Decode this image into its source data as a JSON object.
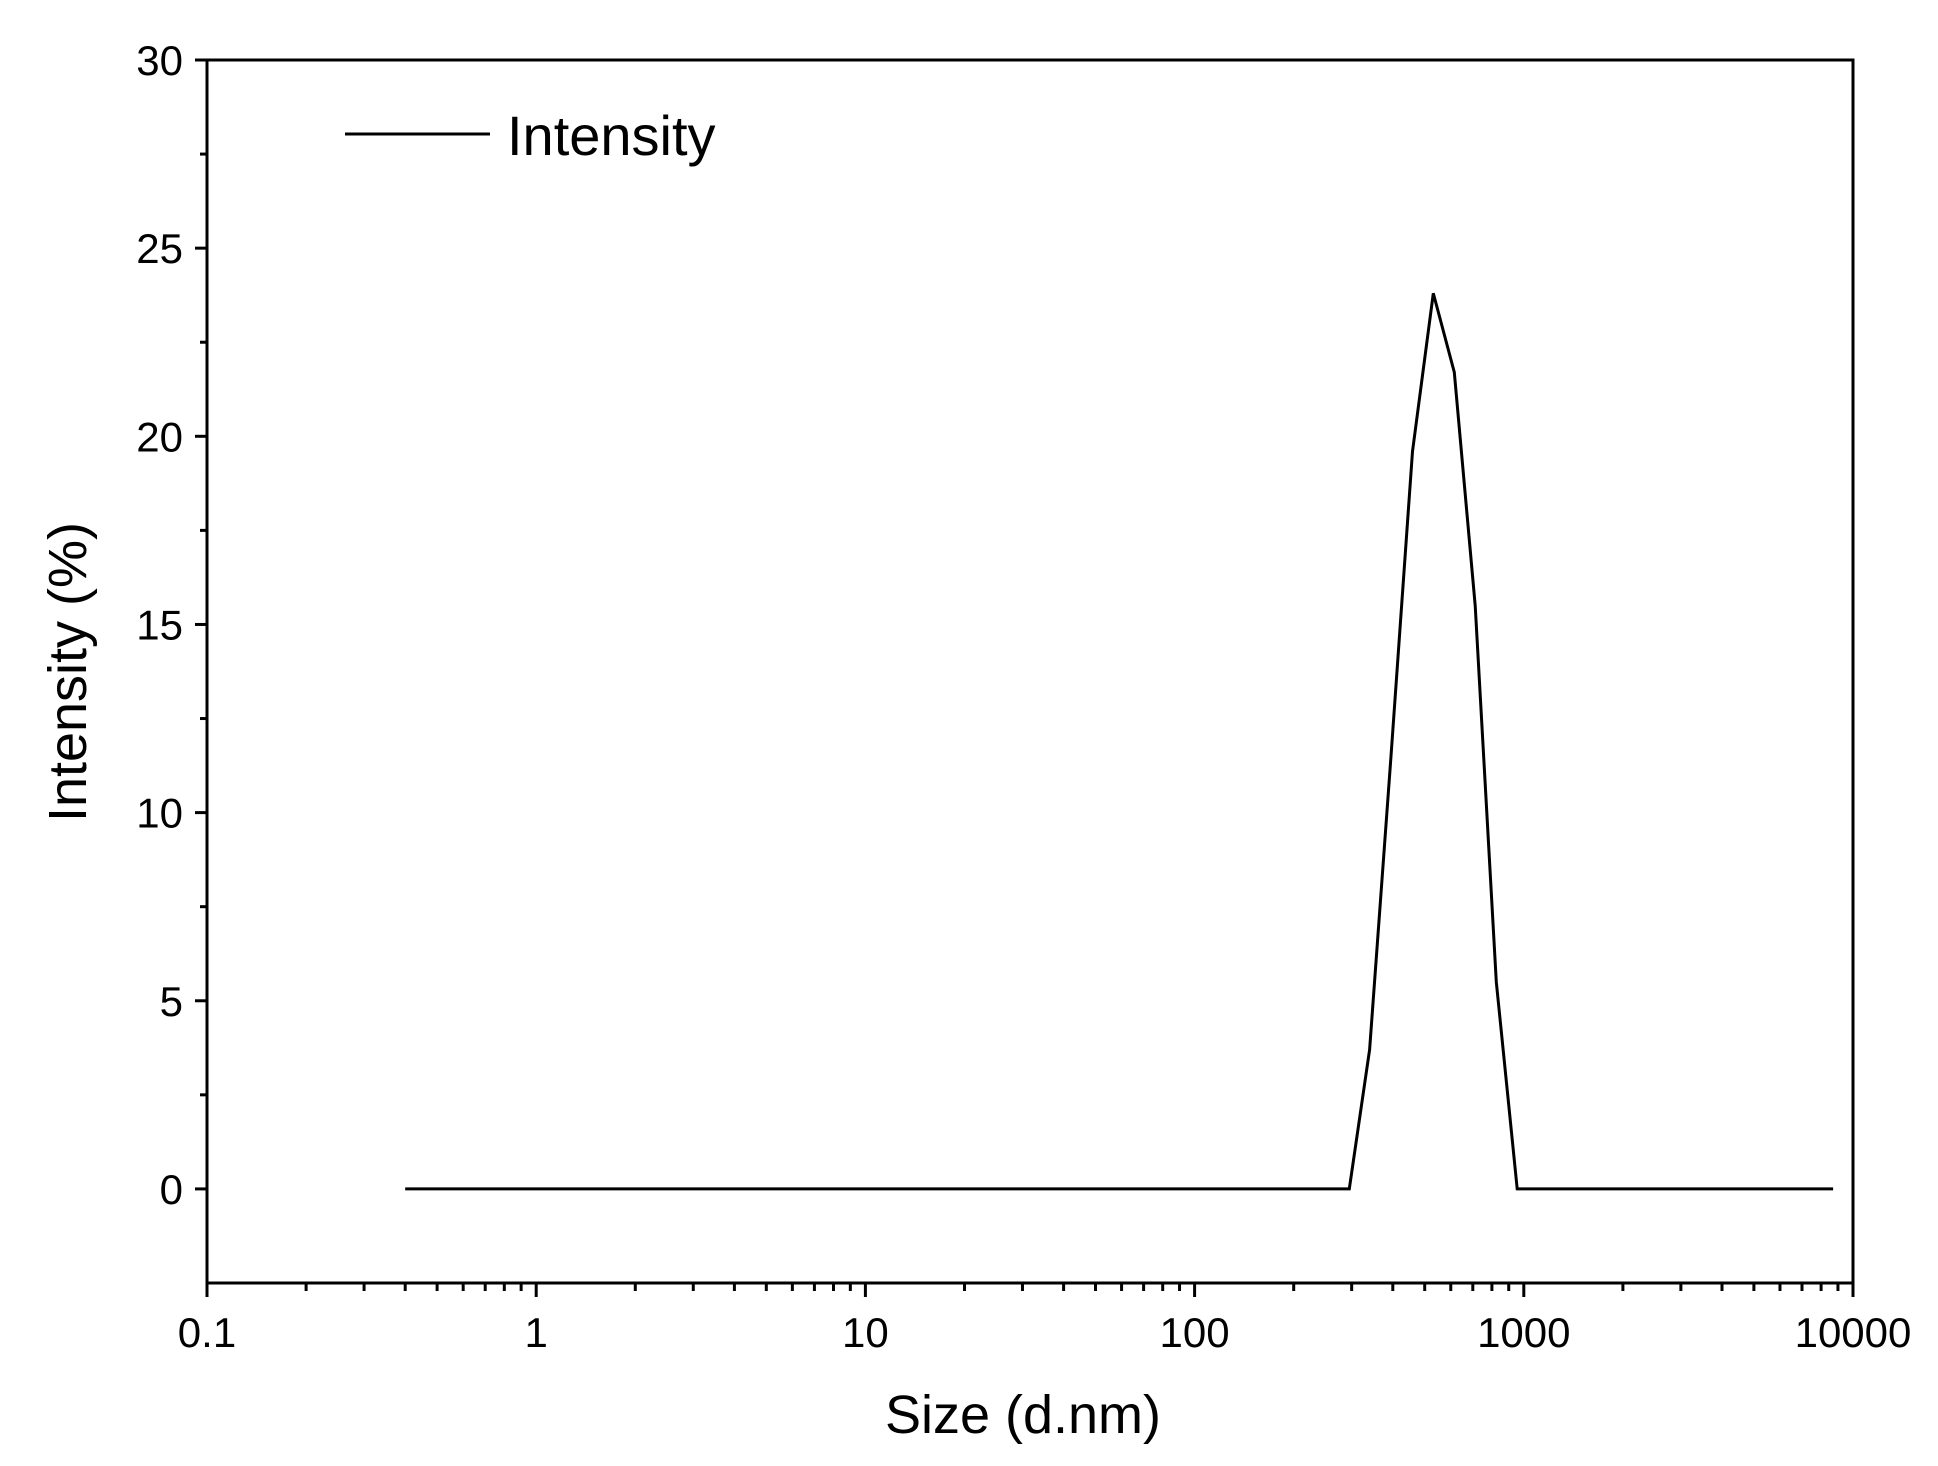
{
  "chart_data": {
    "type": "line",
    "title": "",
    "xlabel": "Size (d.nm)",
    "ylabel": "Intensity (%)",
    "x_scale": "log",
    "xlim": [
      0.1,
      10000
    ],
    "ylim": [
      -2.5,
      30
    ],
    "x_ticks": [
      0.1,
      1,
      10,
      100,
      1000,
      10000
    ],
    "x_tick_labels": [
      "0.1",
      "1",
      "10",
      "100",
      "1000",
      "10000"
    ],
    "y_ticks": [
      0,
      5,
      10,
      15,
      20,
      25,
      30
    ],
    "y_tick_labels": [
      "0",
      "5",
      "10",
      "15",
      "20",
      "25",
      "30"
    ],
    "grid": false,
    "legend": {
      "placement": "top-left",
      "entries": [
        "Intensity"
      ]
    },
    "series": [
      {
        "name": "Intensity",
        "color": "#000000",
        "x": [
          0.4,
          1,
          10,
          100,
          295,
          340,
          395,
          459,
          531,
          615,
          712,
          825,
          955,
          8700
        ],
        "y": [
          0,
          0,
          0,
          0,
          0,
          3.7,
          11.5,
          19.6,
          23.8,
          21.7,
          15.5,
          5.5,
          0,
          0
        ]
      }
    ]
  }
}
